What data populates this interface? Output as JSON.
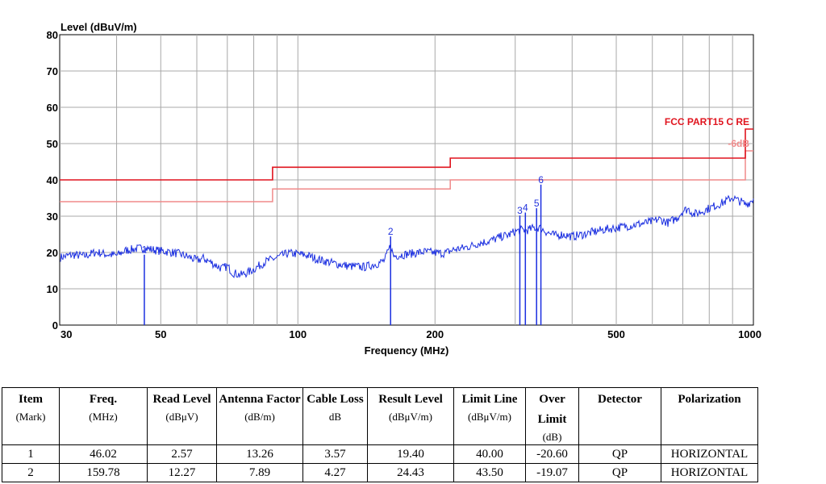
{
  "chart_data": {
    "type": "line",
    "title": "",
    "ylabel": "Level (dBuV/m)",
    "xlabel": "Frequency (MHz)",
    "xscale": "log",
    "xlim": [
      30,
      1000
    ],
    "ylim": [
      0,
      80
    ],
    "x_ticks": [
      30,
      50,
      100,
      200,
      500,
      1000
    ],
    "y_ticks": [
      0,
      10,
      20,
      30,
      40,
      50,
      60,
      70,
      80
    ],
    "grid": true,
    "limit_label": "FCC PART15 C RE",
    "margin_label": "-6dB",
    "limit_color": "#e0141e",
    "margin_color": "#f08a8a",
    "trace_color": "#1a2ee0",
    "limit_line": [
      [
        30,
        40.0
      ],
      [
        88,
        40.0
      ],
      [
        88,
        43.5
      ],
      [
        216,
        43.5
      ],
      [
        216,
        46.0
      ],
      [
        960,
        46.0
      ],
      [
        960,
        54.0
      ],
      [
        1000,
        54.0
      ]
    ],
    "margin_line": [
      [
        30,
        34.0
      ],
      [
        88,
        34.0
      ],
      [
        88,
        37.5
      ],
      [
        216,
        37.5
      ],
      [
        216,
        40.0
      ],
      [
        960,
        40.0
      ],
      [
        960,
        48.0
      ],
      [
        1000,
        48.0
      ]
    ],
    "spectrum": [
      [
        30,
        18.6
      ],
      [
        32,
        19.4
      ],
      [
        34,
        19.0
      ],
      [
        36,
        20.1
      ],
      [
        38,
        19.5
      ],
      [
        40,
        19.2
      ],
      [
        42,
        20.6
      ],
      [
        44,
        21.0
      ],
      [
        46.02,
        21.2
      ],
      [
        48,
        20.8
      ],
      [
        50,
        20.4
      ],
      [
        52,
        20.2
      ],
      [
        55,
        19.6
      ],
      [
        58,
        18.6
      ],
      [
        60,
        17.8
      ],
      [
        62,
        18.4
      ],
      [
        65,
        17.0
      ],
      [
        68,
        15.6
      ],
      [
        70,
        16.2
      ],
      [
        72,
        14.4
      ],
      [
        75,
        13.8
      ],
      [
        78,
        14.6
      ],
      [
        80,
        15.4
      ],
      [
        85,
        17.5
      ],
      [
        90,
        18.6
      ],
      [
        95,
        19.8
      ],
      [
        100,
        19.6
      ],
      [
        105,
        19.2
      ],
      [
        110,
        18.2
      ],
      [
        120,
        17.0
      ],
      [
        130,
        16.2
      ],
      [
        140,
        16.0
      ],
      [
        150,
        17.0
      ],
      [
        155,
        17.8
      ],
      [
        159.78,
        22.0
      ],
      [
        162,
        19.0
      ],
      [
        170,
        19.4
      ],
      [
        180,
        19.8
      ],
      [
        190,
        20.2
      ],
      [
        200,
        19.9
      ],
      [
        210,
        19.8
      ],
      [
        220,
        20.8
      ],
      [
        230,
        21.2
      ],
      [
        240,
        21.8
      ],
      [
        250,
        22.6
      ],
      [
        260,
        23.0
      ],
      [
        270,
        23.6
      ],
      [
        280,
        24.4
      ],
      [
        290,
        24.8
      ],
      [
        300,
        25.8
      ],
      [
        310,
        26.2
      ],
      [
        320,
        26.2
      ],
      [
        330,
        26.8
      ],
      [
        340,
        26.8
      ],
      [
        350,
        25.8
      ],
      [
        360,
        25.0
      ],
      [
        370,
        24.6
      ],
      [
        380,
        25.0
      ],
      [
        400,
        24.4
      ],
      [
        420,
        24.9
      ],
      [
        450,
        25.8
      ],
      [
        480,
        26.5
      ],
      [
        500,
        26.8
      ],
      [
        530,
        27.3
      ],
      [
        560,
        27.8
      ],
      [
        600,
        28.5
      ],
      [
        620,
        29.2
      ],
      [
        650,
        28.2
      ],
      [
        680,
        29.5
      ],
      [
        700,
        31.5
      ],
      [
        720,
        32.0
      ],
      [
        740,
        30.5
      ],
      [
        760,
        31.0
      ],
      [
        780,
        31.6
      ],
      [
        800,
        32.2
      ],
      [
        830,
        33.0
      ],
      [
        860,
        33.8
      ],
      [
        880,
        34.5
      ],
      [
        900,
        35.2
      ],
      [
        920,
        34.4
      ],
      [
        940,
        34.0
      ],
      [
        960,
        33.2
      ],
      [
        980,
        33.8
      ],
      [
        1000,
        34.8
      ]
    ],
    "spikes": [
      {
        "mark": "1",
        "x": 46.02,
        "y": 19.4
      },
      {
        "mark": "2",
        "x": 159.78,
        "y": 24.43
      },
      {
        "mark": "3",
        "x": 307.1,
        "y": 30.2
      },
      {
        "mark": "4",
        "x": 315.8,
        "y": 31.0
      },
      {
        "mark": "5",
        "x": 334.2,
        "y": 32.2
      },
      {
        "mark": "6",
        "x": 341.6,
        "y": 38.7
      }
    ]
  },
  "table": {
    "headers": [
      {
        "label": "Item",
        "unit": "(Mark)"
      },
      {
        "label": "Freq.",
        "unit": "(MHz)"
      },
      {
        "label": "Read Level",
        "unit": "(dBμV)"
      },
      {
        "label": "Antenna Factor",
        "unit": "(dB/m)"
      },
      {
        "label": "Cable Loss",
        "unit": "dB"
      },
      {
        "label": "Result Level",
        "unit": "(dBμV/m)"
      },
      {
        "label": "Limit Line",
        "unit": "(dBμV/m)"
      },
      {
        "label": "Over Limit",
        "unit": "(dB)"
      },
      {
        "label": "Detector",
        "unit": ""
      },
      {
        "label": "Polarization",
        "unit": ""
      }
    ],
    "rows": [
      [
        "1",
        "46.02",
        "2.57",
        "13.26",
        "3.57",
        "19.40",
        "40.00",
        "-20.60",
        "QP",
        "HORIZONTAL"
      ],
      [
        "2",
        "159.78",
        "12.27",
        "7.89",
        "4.27",
        "24.43",
        "43.50",
        "-19.07",
        "QP",
        "HORIZONTAL"
      ]
    ]
  }
}
